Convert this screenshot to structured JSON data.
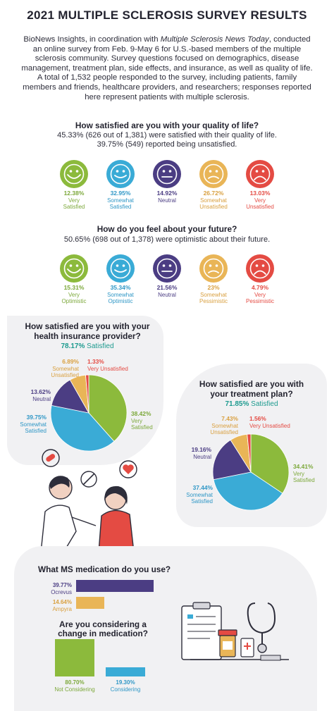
{
  "title": "2021 MULTIPLE SCLEROSIS SURVEY RESULTS",
  "intro": {
    "pre": "BioNews Insights, in coordination with ",
    "italic": "Multiple Sclerosis News Today",
    "post": ", conducted an online survey from Feb. 9-May 6 for U.S.-based members of the multiple sclerosis community. Survey questions focused on demographics, disease management, treatment plan, side effects, and insurance, as well as quality of life. A total of 1,532 people responded to the survey, including patients, family members and friends, healthcare providers, and researchers; responses reported here represent patients with multiple sclerosis."
  },
  "colors": {
    "green": "#8cba3c",
    "blue": "#3aabd6",
    "purple": "#4b3d83",
    "yellow": "#e9b557",
    "red": "#e44b43"
  },
  "quality": {
    "question": "How satisfied are you with your quality of life?",
    "line1": "45.33% (626 out of 1,381) were satisfied with their quality of life.",
    "line2": "39.75% (549) reported being unsatisfied.",
    "faces": [
      {
        "pct": "12.38%",
        "l1": "Very",
        "l2": "Satisfied",
        "icon": "very-happy-face-icon"
      },
      {
        "pct": "32.95%",
        "l1": "Somewhat",
        "l2": "Satisfied",
        "icon": "happy-face-icon"
      },
      {
        "pct": "14.92%",
        "l1": "Neutral",
        "l2": "",
        "icon": "neutral-face-icon"
      },
      {
        "pct": "26.72%",
        "l1": "Somewhat",
        "l2": "Unsatisfied",
        "icon": "sad-face-icon"
      },
      {
        "pct": "13.03%",
        "l1": "Very",
        "l2": "Unsatisfied",
        "icon": "very-sad-face-icon"
      }
    ]
  },
  "future": {
    "question": "How do you feel about your future?",
    "line1": "50.65% (698 out of 1,378) were optimistic about their future.",
    "faces": [
      {
        "pct": "15.31%",
        "l1": "Very",
        "l2": "Optimistic",
        "icon": "very-happy-face-icon"
      },
      {
        "pct": "35.34%",
        "l1": "Somewhat",
        "l2": "Optimistic",
        "icon": "happy-face-icon"
      },
      {
        "pct": "21.56%",
        "l1": "Neutral",
        "l2": "",
        "icon": "neutral-face-icon"
      },
      {
        "pct": "23%",
        "l1": "Somewhat",
        "l2": "Pessimistic",
        "icon": "sad-face-icon"
      },
      {
        "pct": "4.79%",
        "l1": "Very",
        "l2": "Pessimistic",
        "icon": "very-sad-face-icon"
      }
    ]
  },
  "insurance": {
    "q1": "How satisfied are you with your",
    "q2": "health insurance provider?",
    "summary_pct": "78.17%",
    "summary_word": "Satisfied",
    "labels": {
      "very_satisfied": {
        "pct": "38.42%",
        "l1": "Very",
        "l2": "Satisfied"
      },
      "somewhat_satisfied": {
        "pct": "39.75%",
        "l1": "Somewhat",
        "l2": "Satisfied"
      },
      "neutral": {
        "pct": "13.62%",
        "l1": "Neutral"
      },
      "somewhat_unsatisfied": {
        "pct": "6.89%",
        "l1": "Somewhat",
        "l2": "Unsatisfied"
      },
      "very_unsatisfied": {
        "pct": "1.33%",
        "l1": "Very Unsatisfied"
      }
    }
  },
  "treatment": {
    "q1": "How satisfied are you with",
    "q2": "your treatment plan?",
    "summary_pct": "71.85%",
    "summary_word": "Satisfied",
    "labels": {
      "very_satisfied": {
        "pct": "34.41%",
        "l1": "Very",
        "l2": "Satisfied"
      },
      "somewhat_satisfied": {
        "pct": "37.44%",
        "l1": "Somewhat",
        "l2": "Satisfied"
      },
      "neutral": {
        "pct": "19.16%",
        "l1": "Neutral"
      },
      "somewhat_unsatisfied": {
        "pct": "7.43%",
        "l1": "Somewhat",
        "l2": "Unsatisfied"
      },
      "very_unsatisfied": {
        "pct": "1.56%",
        "l1": "Very Unsatisfied"
      }
    }
  },
  "medication": {
    "question": "What MS medication do you use?",
    "bars": [
      {
        "pct": "39.77%",
        "name": "Ocrevus"
      },
      {
        "pct": "14.64%",
        "name": "Ampyra"
      }
    ]
  },
  "change": {
    "q1": "Are you considering a",
    "q2": "change in medication?",
    "bars": [
      {
        "pct": "80.70%",
        "name": "Not Considering"
      },
      {
        "pct": "19.30%",
        "name": "Considering"
      }
    ]
  },
  "chart_data": [
    {
      "type": "pie",
      "title": "How satisfied are you with your health insurance provider?",
      "categories": [
        "Very Satisfied",
        "Somewhat Satisfied",
        "Neutral",
        "Somewhat Unsatisfied",
        "Very Unsatisfied"
      ],
      "values": [
        38.42,
        39.75,
        13.62,
        6.89,
        1.33
      ],
      "colors": [
        "#8cba3c",
        "#3aabd6",
        "#4b3d83",
        "#e9b557",
        "#e44b43"
      ]
    },
    {
      "type": "pie",
      "title": "How satisfied are you with your treatment plan?",
      "categories": [
        "Very Satisfied",
        "Somewhat Satisfied",
        "Neutral",
        "Somewhat Unsatisfied",
        "Very Unsatisfied"
      ],
      "values": [
        34.41,
        37.44,
        19.16,
        7.43,
        1.56
      ],
      "colors": [
        "#8cba3c",
        "#3aabd6",
        "#4b3d83",
        "#e9b557",
        "#e44b43"
      ]
    },
    {
      "type": "bar",
      "title": "What MS medication do you use?",
      "categories": [
        "Ocrevus",
        "Ampyra"
      ],
      "values": [
        39.77,
        14.64
      ],
      "colors": [
        "#4b3d83",
        "#e9b557"
      ]
    },
    {
      "type": "bar",
      "title": "Are you considering a change in medication?",
      "categories": [
        "Not Considering",
        "Considering"
      ],
      "values": [
        80.7,
        19.3
      ],
      "colors": [
        "#8cba3c",
        "#3aabd6"
      ]
    }
  ]
}
